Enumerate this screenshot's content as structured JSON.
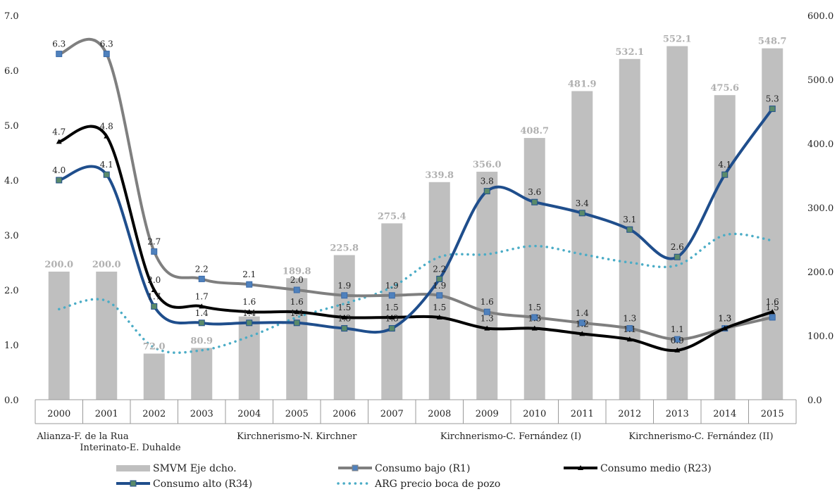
{
  "chart_data": {
    "type": "bar",
    "categories": [
      "2000",
      "2001",
      "2002",
      "2003",
      "2004",
      "2005",
      "2006",
      "2007",
      "2008",
      "2009",
      "2010",
      "2011",
      "2012",
      "2013",
      "2014",
      "2015"
    ],
    "periods": [
      {
        "label": "Alianza-F. de la Rua",
        "from": 0,
        "to": 2
      },
      {
        "label": "Interinato-E. Duhalde",
        "from": 1,
        "to": 3
      },
      {
        "label": "Kirchnerismo-N. Kirchner",
        "from": 3,
        "to": 8
      },
      {
        "label": "Kirchnerismo-C. Fernández (I)",
        "from": 8,
        "to": 12
      },
      {
        "label": "Kirchnerismo-C. Fernández (II)",
        "from": 12,
        "to": 16
      }
    ],
    "left_axis": {
      "ylim": [
        0,
        7
      ],
      "ticks": [
        "0.0",
        "1.0",
        "2.0",
        "3.0",
        "4.0",
        "5.0",
        "6.0",
        "7.0"
      ]
    },
    "right_axis": {
      "ylim": [
        0,
        600
      ],
      "ticks": [
        "0.0",
        "100.0",
        "200.0",
        "300.0",
        "400.0",
        "500.0",
        "600.0"
      ]
    },
    "bars": {
      "name": "SMVM Eje dcho.",
      "axis": "right",
      "color": "#bfbfbf",
      "values": [
        200.0,
        200.0,
        72.0,
        80.9,
        130.0,
        189.8,
        225.8,
        275.4,
        339.8,
        356.0,
        408.7,
        481.9,
        532.1,
        552.1,
        475.6,
        548.7
      ],
      "labels": [
        "200.0",
        "200.0",
        "72.0",
        "80.9",
        "",
        "189.8",
        "225.8",
        "275.4",
        "339.8",
        "356.0",
        "408.7",
        "481.9",
        "532.1",
        "552.1",
        "475.6",
        "548.7"
      ]
    },
    "series": [
      {
        "name": "Consumo bajo (R1)",
        "axis": "left",
        "color": "#7f7f7f",
        "marker_color": "#4f81bd",
        "values": [
          6.3,
          6.3,
          2.7,
          2.2,
          2.1,
          2.0,
          1.9,
          1.9,
          1.9,
          1.6,
          1.5,
          1.4,
          1.3,
          1.1,
          1.3,
          1.5
        ],
        "labels": [
          "6.3",
          "6.3",
          "2.7",
          "2.2",
          "2.1",
          "2.0",
          "1.9",
          "1.9",
          "1.9",
          "1.6",
          "1.5",
          "1.4",
          "1.3",
          "1.1",
          "1.3",
          "1.5"
        ]
      },
      {
        "name": "Consumo medio (R23)",
        "axis": "left",
        "color": "#000000",
        "marker_color": "#000000",
        "values": [
          4.7,
          4.8,
          2.0,
          1.7,
          1.6,
          1.6,
          1.5,
          1.5,
          1.5,
          1.3,
          1.3,
          1.2,
          1.1,
          0.9,
          1.3,
          1.6
        ],
        "labels": [
          "4.7",
          "4.8",
          "2.0",
          "1.7",
          "1.6",
          "1.6",
          "1.5",
          "1.5",
          "1.5",
          "1.3",
          "1.3",
          "1.2",
          "1.1",
          "0.9",
          "1.3",
          "1.6"
        ]
      },
      {
        "name": "Consumo alto (R34)",
        "axis": "left",
        "color": "#1f4e8c",
        "marker_color": "#5a8a6a",
        "values": [
          4.0,
          4.1,
          1.7,
          1.4,
          1.4,
          1.4,
          1.3,
          1.3,
          2.2,
          3.8,
          3.6,
          3.4,
          3.1,
          2.6,
          4.1,
          5.3
        ],
        "labels": [
          "4.0",
          "4.1",
          "1.7",
          "1.4",
          "1.4",
          "1.4",
          "1.3",
          "1.3",
          "2.2",
          "3.8",
          "3.6",
          "3.4",
          "3.1",
          "2.6",
          "4.1",
          "5.3"
        ]
      },
      {
        "name": "ARG precio boca de pozo",
        "axis": "left",
        "color": "#4bacc6",
        "dotted": true,
        "values": [
          1.65,
          1.8,
          0.95,
          0.9,
          1.15,
          1.5,
          1.75,
          2.05,
          2.6,
          2.65,
          2.8,
          2.65,
          2.5,
          2.45,
          3.0,
          2.9
        ],
        "labels": []
      }
    ],
    "legend": [
      {
        "label": "SMVM Eje dcho.",
        "kind": "bar"
      },
      {
        "label": "Consumo bajo (R1)",
        "kind": "line",
        "series": 0
      },
      {
        "label": "Consumo medio (R23)",
        "kind": "line",
        "series": 1
      },
      {
        "label": "Consumo alto (R34)",
        "kind": "line",
        "series": 2
      },
      {
        "label": "ARG precio boca de pozo",
        "kind": "dotted",
        "series": 3
      }
    ],
    "legend_position": "bottom",
    "grid": false
  }
}
